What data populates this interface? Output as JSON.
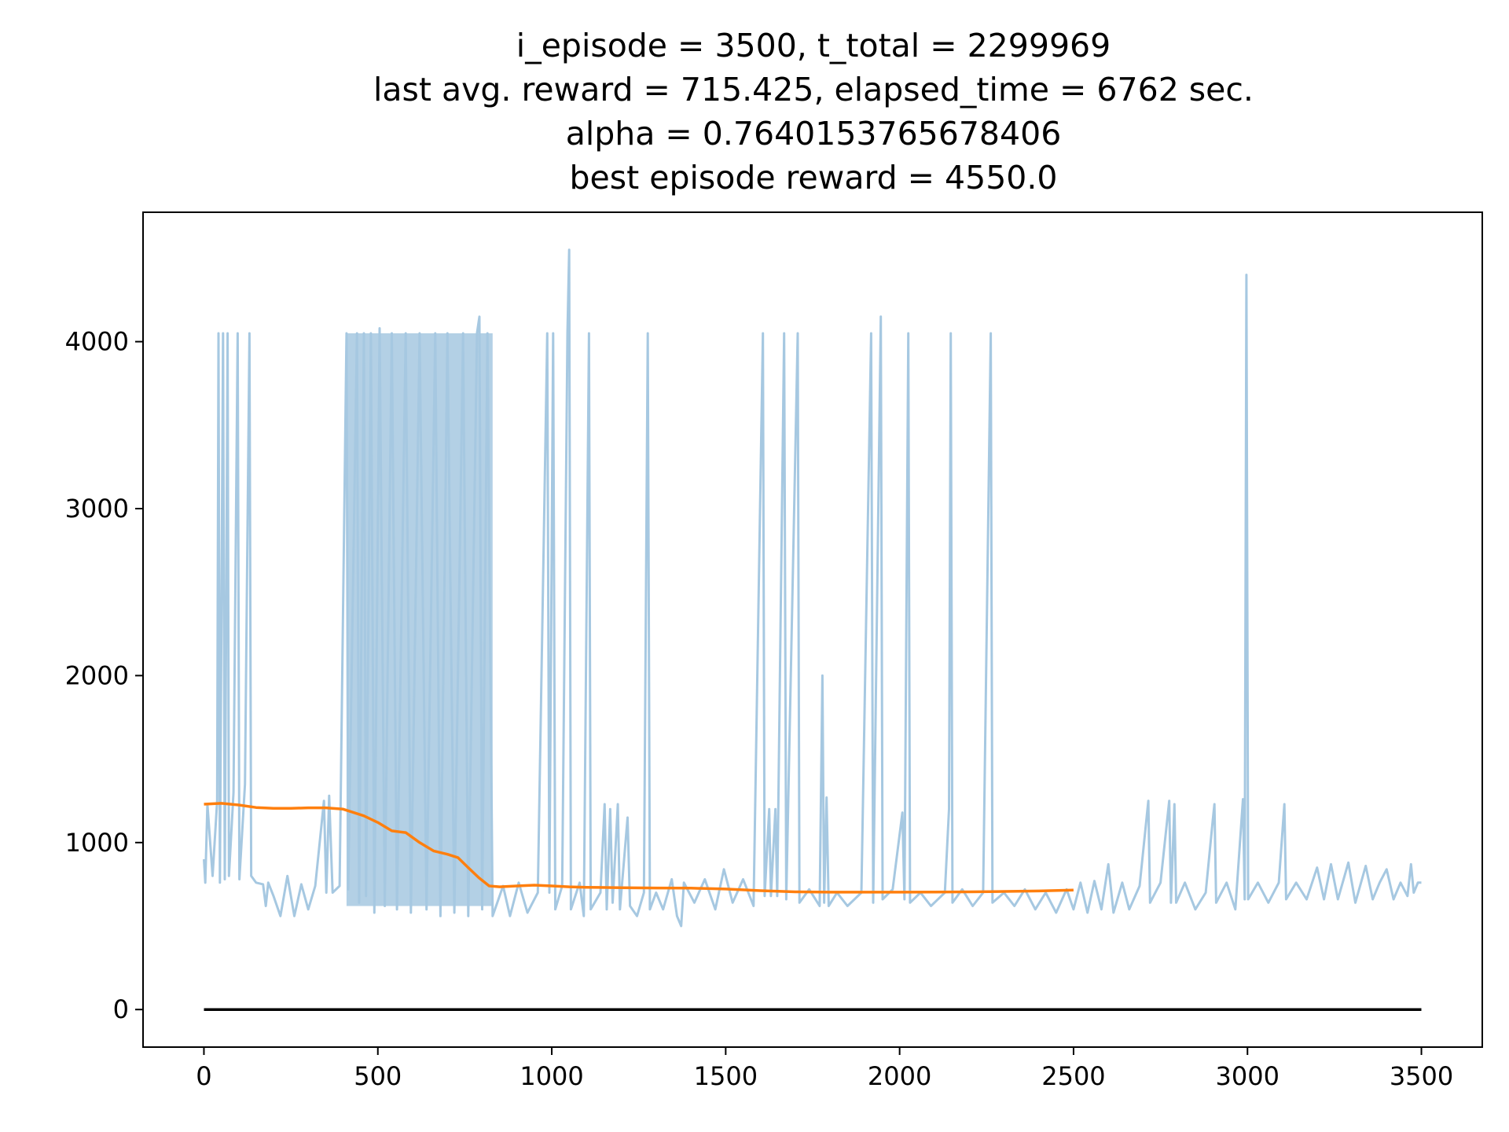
{
  "chart_data": {
    "type": "line",
    "title_lines": [
      "i_episode = 3500, t_total = 2299969",
      "last avg. reward = 715.425, elapsed_time = 6762 sec.",
      "alpha = 0.7640153765678406",
      "best episode reward = 4550.0"
    ],
    "xlabel": "",
    "ylabel": "",
    "xlim": [
      -175,
      3675
    ],
    "ylim": [
      -225,
      4775
    ],
    "x_ticks": [
      0,
      500,
      1000,
      1500,
      2000,
      2500,
      3000,
      3500
    ],
    "y_ticks": [
      0,
      1000,
      2000,
      3000,
      4000
    ],
    "grid": false,
    "series": [
      {
        "color": "#a6c8e1",
        "style": "raw-per-episode",
        "x_range": [
          0,
          3500
        ],
        "dense_band_region": [
          410,
          830
        ],
        "points": [
          [
            0,
            900
          ],
          [
            4,
            760
          ],
          [
            10,
            1230
          ],
          [
            25,
            800
          ],
          [
            38,
            1250
          ],
          [
            42,
            4050
          ],
          [
            46,
            760
          ],
          [
            55,
            4050
          ],
          [
            60,
            780
          ],
          [
            68,
            4050
          ],
          [
            72,
            800
          ],
          [
            85,
            1300
          ],
          [
            97,
            4050
          ],
          [
            102,
            780
          ],
          [
            118,
            1350
          ],
          [
            131,
            4050
          ],
          [
            136,
            800
          ],
          [
            150,
            760
          ],
          [
            170,
            750
          ],
          [
            178,
            620
          ],
          [
            185,
            760
          ],
          [
            200,
            680
          ],
          [
            220,
            560
          ],
          [
            240,
            800
          ],
          [
            260,
            560
          ],
          [
            280,
            750
          ],
          [
            300,
            600
          ],
          [
            320,
            740
          ],
          [
            345,
            1250
          ],
          [
            352,
            700
          ],
          [
            360,
            1280
          ],
          [
            370,
            700
          ],
          [
            390,
            740
          ],
          [
            410,
            4050
          ],
          [
            415,
            720
          ],
          [
            440,
            4050
          ],
          [
            446,
            640
          ],
          [
            460,
            4050
          ],
          [
            466,
            680
          ],
          [
            480,
            4050
          ],
          [
            490,
            580
          ],
          [
            505,
            4080
          ],
          [
            520,
            620
          ],
          [
            540,
            4050
          ],
          [
            555,
            600
          ],
          [
            580,
            4050
          ],
          [
            595,
            580
          ],
          [
            620,
            4050
          ],
          [
            640,
            600
          ],
          [
            665,
            4050
          ],
          [
            680,
            560
          ],
          [
            700,
            4050
          ],
          [
            720,
            580
          ],
          [
            745,
            4050
          ],
          [
            760,
            560
          ],
          [
            785,
            4050
          ],
          [
            792,
            4150
          ],
          [
            800,
            600
          ],
          [
            815,
            4050
          ],
          [
            830,
            560
          ],
          [
            860,
            740
          ],
          [
            880,
            560
          ],
          [
            905,
            760
          ],
          [
            930,
            580
          ],
          [
            960,
            700
          ],
          [
            987,
            4050
          ],
          [
            993,
            700
          ],
          [
            1004,
            4050
          ],
          [
            1010,
            600
          ],
          [
            1030,
            740
          ],
          [
            1045,
            4050
          ],
          [
            1050,
            4550
          ],
          [
            1055,
            600
          ],
          [
            1080,
            760
          ],
          [
            1092,
            560
          ],
          [
            1107,
            4050
          ],
          [
            1112,
            600
          ],
          [
            1140,
            700
          ],
          [
            1152,
            1230
          ],
          [
            1158,
            600
          ],
          [
            1168,
            1200
          ],
          [
            1175,
            640
          ],
          [
            1190,
            1230
          ],
          [
            1196,
            600
          ],
          [
            1218,
            1150
          ],
          [
            1225,
            620
          ],
          [
            1245,
            560
          ],
          [
            1265,
            700
          ],
          [
            1276,
            4050
          ],
          [
            1282,
            600
          ],
          [
            1300,
            700
          ],
          [
            1320,
            600
          ],
          [
            1345,
            780
          ],
          [
            1360,
            560
          ],
          [
            1372,
            500
          ],
          [
            1380,
            760
          ],
          [
            1410,
            640
          ],
          [
            1440,
            780
          ],
          [
            1470,
            600
          ],
          [
            1495,
            840
          ],
          [
            1520,
            640
          ],
          [
            1550,
            780
          ],
          [
            1580,
            620
          ],
          [
            1607,
            4050
          ],
          [
            1612,
            680
          ],
          [
            1625,
            1200
          ],
          [
            1630,
            680
          ],
          [
            1643,
            1200
          ],
          [
            1648,
            680
          ],
          [
            1668,
            4050
          ],
          [
            1674,
            660
          ],
          [
            1707,
            4050
          ],
          [
            1712,
            640
          ],
          [
            1740,
            720
          ],
          [
            1770,
            620
          ],
          [
            1778,
            2000
          ],
          [
            1783,
            640
          ],
          [
            1790,
            1270
          ],
          [
            1796,
            620
          ],
          [
            1820,
            700
          ],
          [
            1850,
            620
          ],
          [
            1890,
            700
          ],
          [
            1918,
            4050
          ],
          [
            1924,
            640
          ],
          [
            1946,
            4150
          ],
          [
            1951,
            660
          ],
          [
            1980,
            720
          ],
          [
            2008,
            1180
          ],
          [
            2014,
            660
          ],
          [
            2025,
            4050
          ],
          [
            2030,
            640
          ],
          [
            2060,
            700
          ],
          [
            2090,
            620
          ],
          [
            2130,
            700
          ],
          [
            2142,
            1200
          ],
          [
            2147,
            4050
          ],
          [
            2152,
            640
          ],
          [
            2180,
            720
          ],
          [
            2210,
            620
          ],
          [
            2240,
            700
          ],
          [
            2262,
            4050
          ],
          [
            2267,
            640
          ],
          [
            2300,
            700
          ],
          [
            2330,
            620
          ],
          [
            2360,
            720
          ],
          [
            2390,
            600
          ],
          [
            2420,
            700
          ],
          [
            2450,
            580
          ],
          [
            2480,
            720
          ],
          [
            2500,
            600
          ],
          [
            2520,
            760
          ],
          [
            2540,
            580
          ],
          [
            2560,
            770
          ],
          [
            2580,
            600
          ],
          [
            2600,
            870
          ],
          [
            2615,
            580
          ],
          [
            2640,
            760
          ],
          [
            2660,
            600
          ],
          [
            2690,
            740
          ],
          [
            2715,
            1250
          ],
          [
            2720,
            640
          ],
          [
            2750,
            760
          ],
          [
            2775,
            1250
          ],
          [
            2780,
            640
          ],
          [
            2790,
            1230
          ],
          [
            2795,
            640
          ],
          [
            2820,
            760
          ],
          [
            2850,
            600
          ],
          [
            2880,
            700
          ],
          [
            2900,
            1130
          ],
          [
            2905,
            1230
          ],
          [
            2910,
            640
          ],
          [
            2940,
            760
          ],
          [
            2965,
            600
          ],
          [
            2987,
            1260
          ],
          [
            2992,
            660
          ],
          [
            2997,
            4400
          ],
          [
            3002,
            660
          ],
          [
            3030,
            760
          ],
          [
            3060,
            640
          ],
          [
            3090,
            760
          ],
          [
            3106,
            1230
          ],
          [
            3111,
            660
          ],
          [
            3140,
            760
          ],
          [
            3170,
            660
          ],
          [
            3200,
            850
          ],
          [
            3220,
            660
          ],
          [
            3240,
            870
          ],
          [
            3260,
            660
          ],
          [
            3290,
            880
          ],
          [
            3310,
            640
          ],
          [
            3340,
            860
          ],
          [
            3360,
            660
          ],
          [
            3380,
            760
          ],
          [
            3400,
            840
          ],
          [
            3420,
            660
          ],
          [
            3440,
            760
          ],
          [
            3460,
            680
          ],
          [
            3470,
            870
          ],
          [
            3478,
            700
          ],
          [
            3490,
            760
          ],
          [
            3500,
            760
          ]
        ]
      },
      {
        "color": "#ff7f0e",
        "style": "moving-average",
        "points": [
          [
            0,
            1230
          ],
          [
            50,
            1235
          ],
          [
            100,
            1225
          ],
          [
            150,
            1210
          ],
          [
            200,
            1205
          ],
          [
            250,
            1205
          ],
          [
            300,
            1208
          ],
          [
            350,
            1208
          ],
          [
            400,
            1200
          ],
          [
            430,
            1180
          ],
          [
            460,
            1160
          ],
          [
            500,
            1120
          ],
          [
            540,
            1070
          ],
          [
            580,
            1060
          ],
          [
            620,
            1000
          ],
          [
            660,
            950
          ],
          [
            700,
            930
          ],
          [
            730,
            910
          ],
          [
            760,
            850
          ],
          [
            790,
            790
          ],
          [
            820,
            740
          ],
          [
            850,
            735
          ],
          [
            900,
            740
          ],
          [
            950,
            745
          ],
          [
            1000,
            740
          ],
          [
            1050,
            735
          ],
          [
            1100,
            732
          ],
          [
            1200,
            730
          ],
          [
            1300,
            728
          ],
          [
            1400,
            727
          ],
          [
            1500,
            722
          ],
          [
            1600,
            712
          ],
          [
            1700,
            705
          ],
          [
            1800,
            703
          ],
          [
            1900,
            703
          ],
          [
            2000,
            703
          ],
          [
            2100,
            704
          ],
          [
            2200,
            705
          ],
          [
            2300,
            707
          ],
          [
            2400,
            710
          ],
          [
            2500,
            715
          ]
        ]
      },
      {
        "color": "#000000",
        "style": "zero-baseline",
        "points": [
          [
            0,
            0
          ],
          [
            3500,
            0
          ]
        ]
      }
    ]
  }
}
